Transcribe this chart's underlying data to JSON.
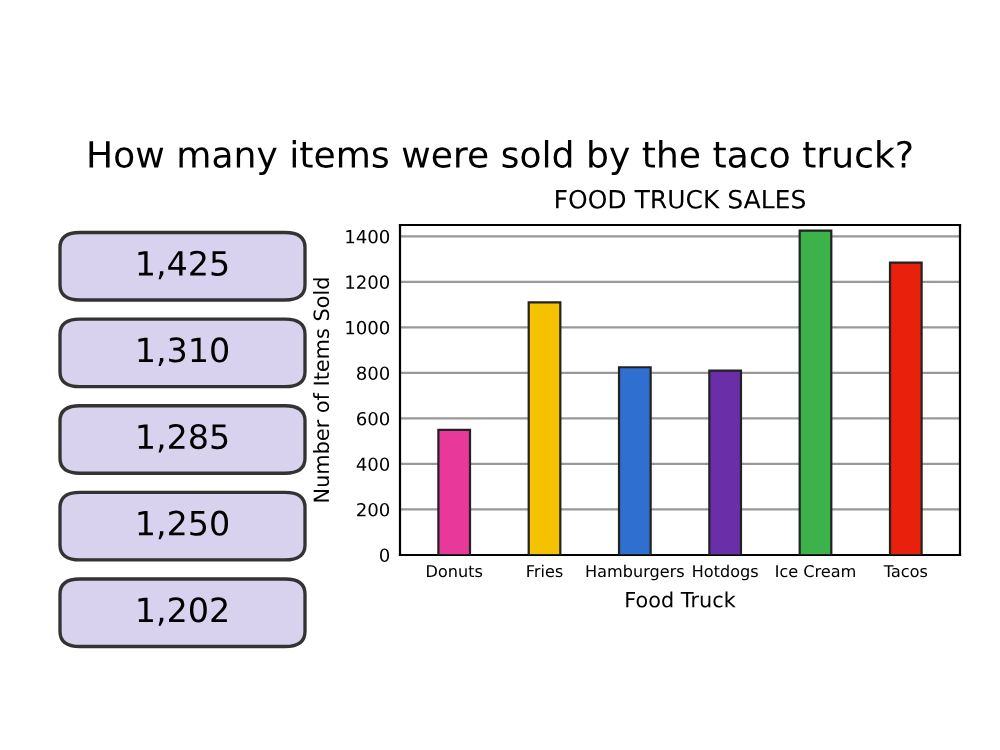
{
  "chart_data": {
    "type": "bar",
    "subtitle": "How many items were sold by the taco truck?",
    "title": "FOOD TRUCK SALES",
    "xlabel": "Food Truck",
    "ylabel": "Number of Items Sold",
    "categories": [
      "Donuts",
      "Fries",
      "Hamburgers",
      "Hotdogs",
      "Ice Cream",
      "Tacos"
    ],
    "values": [
      550,
      1110,
      825,
      810,
      1425,
      1285
    ],
    "colors": [
      "#e8399a",
      "#f5c200",
      "#2f6fd0",
      "#6a2fa8",
      "#3cb34a",
      "#e8200c"
    ],
    "ylim": [
      0,
      1450
    ],
    "yticks": [
      0,
      200,
      400,
      600,
      800,
      1000,
      1200,
      1400
    ],
    "grid": "y",
    "annotations": [
      "1,425",
      "1,310",
      "1,285",
      "1,250",
      "1,202"
    ]
  }
}
